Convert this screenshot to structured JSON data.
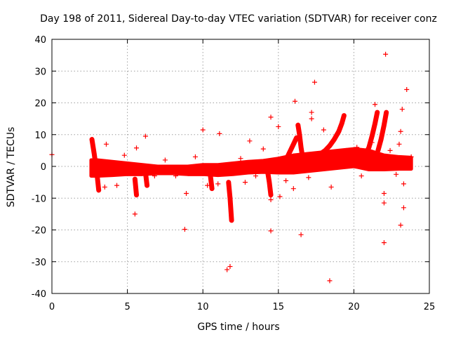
{
  "chart_data": {
    "type": "scatter",
    "title": "Day 198 of 2011, Sidereal Day-to-day VTEC variation (SDTVAR) for receiver conz",
    "xlabel": "GPS time / hours",
    "ylabel": "SDTVAR / TECUs",
    "xlim": [
      0,
      25
    ],
    "ylim": [
      -40,
      40
    ],
    "xticks": [
      0,
      5,
      10,
      15,
      20,
      25
    ],
    "yticks": [
      -40,
      -30,
      -20,
      -10,
      0,
      10,
      20,
      30,
      40
    ],
    "xtick_labels": [
      "0",
      "5",
      "10",
      "15",
      "20",
      "25"
    ],
    "ytick_labels": [
      "-40",
      "-30",
      "-20",
      "-10",
      "0",
      "10",
      "20",
      "30",
      "40"
    ],
    "grid": true,
    "marker": "+",
    "color": "#ff0000",
    "series": [
      {
        "name": "SDTVAR",
        "dense_band": {
          "x": [
            2.6,
            3,
            4,
            5,
            6,
            7,
            8,
            9,
            10,
            11,
            12,
            13,
            14,
            15,
            16,
            17,
            18,
            19,
            20,
            21,
            22,
            23,
            23.8
          ],
          "y_low": [
            -3,
            -3,
            -2.8,
            -2.5,
            -2.5,
            -2.2,
            -2.2,
            -2.5,
            -2.5,
            -2.8,
            -2.5,
            -2,
            -1.8,
            -2,
            -2,
            -1.5,
            -1,
            -0.5,
            0,
            -1,
            -1,
            -0.8,
            -0.8
          ],
          "y_high": [
            2,
            2,
            1.5,
            1,
            0.5,
            0,
            0,
            0,
            0.5,
            0.5,
            1,
            1.5,
            1.8,
            2.5,
            3.5,
            4,
            4.5,
            5,
            5.5,
            5,
            3.5,
            3,
            2.8
          ]
        },
        "arcs": [
          {
            "x": [
              15.4,
              15.6,
              15.8,
              16.0,
              16.2
            ],
            "y": [
              1,
              3,
              5,
              7,
              9
            ]
          },
          {
            "x": [
              16.3,
              16.4,
              16.5,
              16.6,
              16.7,
              16.9,
              17.1
            ],
            "y": [
              13,
              10,
              6,
              3,
              1,
              0,
              -1
            ]
          },
          {
            "x": [
              17.8,
              18.1,
              18.4,
              18.7,
              19.0,
              19.2,
              19.35
            ],
            "y": [
              4,
              5,
              6.5,
              8.5,
              11,
              13.5,
              16
            ]
          },
          {
            "x": [
              20.8,
              21.0,
              21.2,
              21.4,
              21.55
            ],
            "y": [
              4,
              6,
              9.5,
              13.5,
              17
            ]
          },
          {
            "x": [
              21.6,
              21.8,
              22.0,
              22.15
            ],
            "y": [
              5,
              8.5,
              13,
              17
            ]
          },
          {
            "x": [
              2.65,
              2.8,
              3.0,
              3.1
            ],
            "y": [
              8.5,
              4,
              -3,
              -7.5
            ]
          },
          {
            "x": [
              11.7,
              11.8,
              11.9
            ],
            "y": [
              -5,
              -10,
              -17
            ]
          },
          {
            "x": [
              5.5,
              5.6
            ],
            "y": [
              -4,
              -9
            ]
          },
          {
            "x": [
              6.2,
              6.3
            ],
            "y": [
              -2,
              -6
            ]
          },
          {
            "x": [
              14.3,
              14.4,
              14.5
            ],
            "y": [
              -2,
              -5,
              -9
            ]
          },
          {
            "x": [
              10.5,
              10.6
            ],
            "y": [
              -3,
              -7
            ]
          }
        ],
        "points": [
          {
            "x": 0.0,
            "y": 3.7
          },
          {
            "x": 22.1,
            "y": 35.3
          },
          {
            "x": 23.5,
            "y": 24.2
          },
          {
            "x": 17.4,
            "y": 26.5
          },
          {
            "x": 21.4,
            "y": 19.5
          },
          {
            "x": 16.1,
            "y": 20.5
          },
          {
            "x": 23.2,
            "y": 18
          },
          {
            "x": 14.5,
            "y": 15.5
          },
          {
            "x": 17.2,
            "y": 17
          },
          {
            "x": 17.2,
            "y": 15
          },
          {
            "x": 15.0,
            "y": 12.5
          },
          {
            "x": 10.0,
            "y": 11.5
          },
          {
            "x": 11.1,
            "y": 10.3
          },
          {
            "x": 18.0,
            "y": 11.5
          },
          {
            "x": 6.2,
            "y": 9.5
          },
          {
            "x": 23.1,
            "y": 11
          },
          {
            "x": 3.6,
            "y": 7
          },
          {
            "x": 13.1,
            "y": 8
          },
          {
            "x": 22.4,
            "y": 5
          },
          {
            "x": 5.6,
            "y": 5.8
          },
          {
            "x": 8.9,
            "y": -8.5
          },
          {
            "x": 8.8,
            "y": -19.8
          },
          {
            "x": 5.5,
            "y": -15
          },
          {
            "x": 11.6,
            "y": -32.5
          },
          {
            "x": 11.8,
            "y": -31.5
          },
          {
            "x": 14.5,
            "y": -20.3
          },
          {
            "x": 16.5,
            "y": -21.5
          },
          {
            "x": 18.4,
            "y": -36
          },
          {
            "x": 22.0,
            "y": -24
          },
          {
            "x": 23.1,
            "y": -18.5
          },
          {
            "x": 23.3,
            "y": -13
          },
          {
            "x": 22.0,
            "y": -11.5
          },
          {
            "x": 22.0,
            "y": -8.5
          },
          {
            "x": 23.3,
            "y": -5.5
          },
          {
            "x": 18.5,
            "y": -6.5
          },
          {
            "x": 14.5,
            "y": -10.5
          },
          {
            "x": 15.1,
            "y": -9.5
          },
          {
            "x": 10.3,
            "y": -6
          },
          {
            "x": 11.0,
            "y": -5.5
          },
          {
            "x": 12.8,
            "y": -5
          },
          {
            "x": 4.3,
            "y": -6
          },
          {
            "x": 16.0,
            "y": -7
          },
          {
            "x": 3.5,
            "y": -6.5
          },
          {
            "x": 19.5,
            "y": 5
          },
          {
            "x": 20.2,
            "y": 6
          },
          {
            "x": 23.8,
            "y": 3
          },
          {
            "x": 12.5,
            "y": 2.5
          },
          {
            "x": 9.5,
            "y": 3
          },
          {
            "x": 7.5,
            "y": 2
          },
          {
            "x": 4.8,
            "y": 3.5
          },
          {
            "x": 14.0,
            "y": 5.5
          },
          {
            "x": 15.5,
            "y": -4.5
          },
          {
            "x": 17.0,
            "y": -3.5
          },
          {
            "x": 20.5,
            "y": -3
          },
          {
            "x": 22.8,
            "y": -2.5
          },
          {
            "x": 21.2,
            "y": 7.5
          },
          {
            "x": 23.0,
            "y": 7
          },
          {
            "x": 13.5,
            "y": -3
          },
          {
            "x": 8.2,
            "y": -3
          },
          {
            "x": 6.8,
            "y": -3
          }
        ]
      }
    ]
  }
}
